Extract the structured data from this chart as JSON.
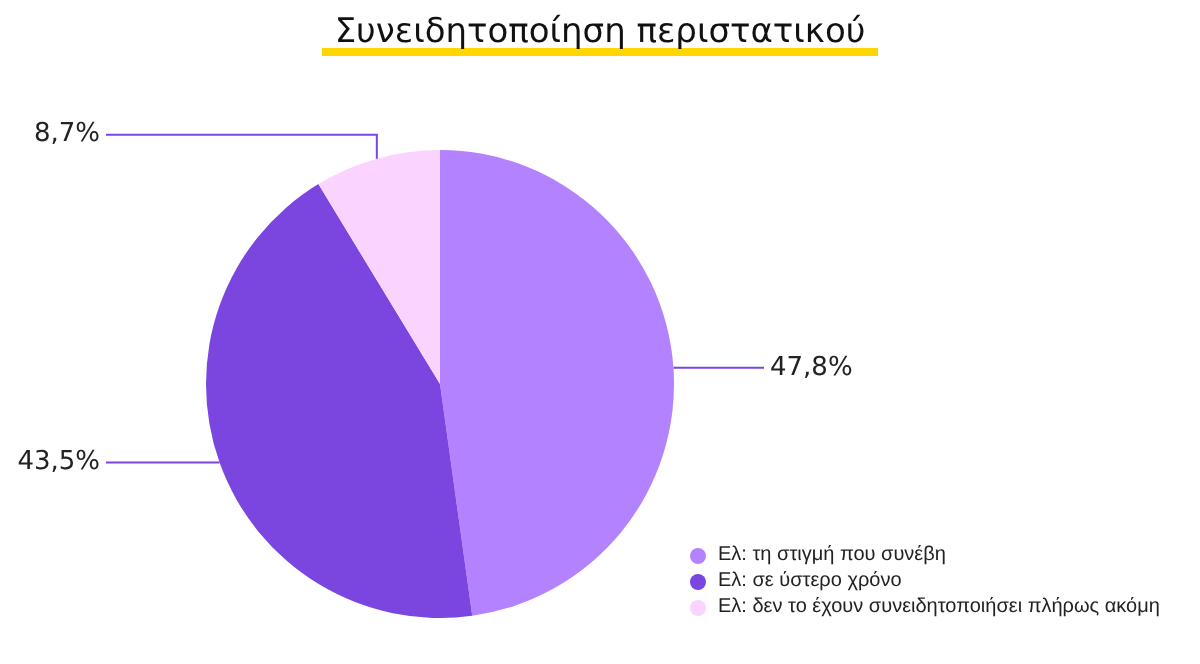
{
  "chart_data": {
    "type": "pie",
    "title": "Συνειδητοποίηση περιστατικού",
    "categories": [
      "Ελ: τη στιγμή που συνέβη",
      "Ελ: σε ύστερο χρόνο",
      "Ελ: δεν το έχουν συνειδητοποιήσει πλήρως ακόμη"
    ],
    "values": [
      47.8,
      43.5,
      8.7
    ],
    "colors": [
      "#b383ff",
      "#7b45e0",
      "#fbd3ff"
    ],
    "value_labels": [
      "47,8%",
      "43,5%",
      "8,7%"
    ],
    "legend": "bottom right"
  }
}
